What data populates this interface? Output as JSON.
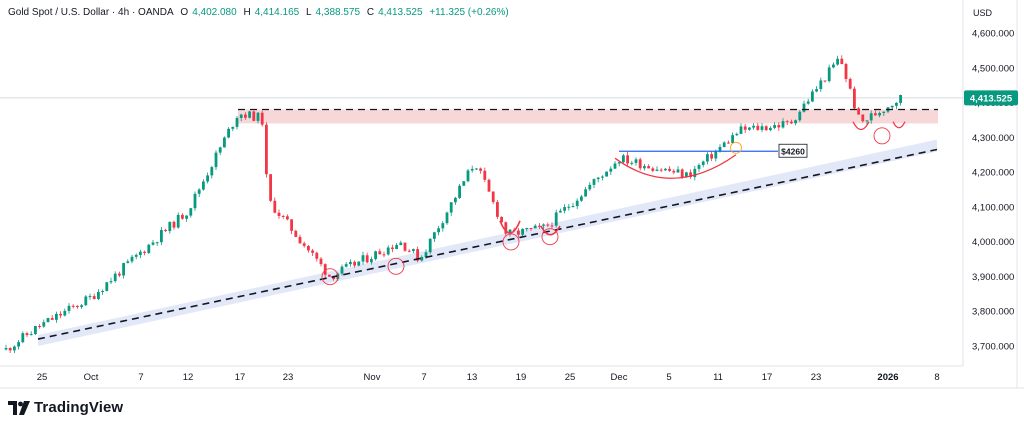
{
  "header": {
    "symbol": "Gold Spot / U.S. Dollar · 4h · OANDA",
    "open_label": "O",
    "open": "4,402.080",
    "high_label": "H",
    "high": "4,414.165",
    "low_label": "L",
    "low": "4,388.575",
    "close_label": "C",
    "close": "4,413.525",
    "change": "+11.325 (+0.26%)"
  },
  "price_axis": {
    "currency": "USD",
    "last_price": "4,413.525"
  },
  "annotation": {
    "level_label": "$4260"
  },
  "brand": {
    "name": "TradingView"
  },
  "colors": {
    "up": "#089981",
    "down": "#f23645",
    "zone": "#f8d7d9",
    "trend_band": "#e3e8f8",
    "level_line": "#2962ff",
    "last_price_tag": "#089981"
  },
  "chart_data": {
    "type": "candlestick",
    "ylim": [
      3660,
      4640
    ],
    "y_ticks": [
      "3,700.000",
      "3,800.000",
      "3,900.000",
      "4,000.000",
      "4,100.000",
      "4,200.000",
      "4,300.000",
      "4,400.000",
      "4,500.000",
      "4,600.000"
    ],
    "y_tick_values": [
      3700,
      3800,
      3900,
      4000,
      4100,
      4200,
      4300,
      4400,
      4500,
      4600
    ],
    "x_ticks": [
      "25",
      "Oct",
      "7",
      "12",
      "17",
      "23",
      "Nov",
      "7",
      "13",
      "19",
      "25",
      "Dec",
      "5",
      "11",
      "17",
      "23",
      "2026",
      "8"
    ],
    "approx_closes": [
      {
        "x": "Sep 22",
        "y": 3690
      },
      {
        "x": "Sep 25",
        "y": 3755
      },
      {
        "x": "Oct 1",
        "y": 3840
      },
      {
        "x": "Oct 7",
        "y": 3970
      },
      {
        "x": "Oct 12",
        "y": 4090
      },
      {
        "x": "Oct 17",
        "y": 4370
      },
      {
        "x": "Oct 20",
        "y": 4355
      },
      {
        "x": "Oct 21",
        "y": 4120
      },
      {
        "x": "Oct 28",
        "y": 3900
      },
      {
        "x": "Nov 3",
        "y": 4000
      },
      {
        "x": "Nov 5",
        "y": 3950
      },
      {
        "x": "Nov 13",
        "y": 4230
      },
      {
        "x": "Nov 17",
        "y": 4020
      },
      {
        "x": "Nov 21",
        "y": 4040
      },
      {
        "x": "Dec 1",
        "y": 4240
      },
      {
        "x": "Dec 8",
        "y": 4190
      },
      {
        "x": "Dec 12",
        "y": 4320
      },
      {
        "x": "Dec 19",
        "y": 4340
      },
      {
        "x": "Dec 26",
        "y": 4530
      },
      {
        "x": "Dec 29",
        "y": 4340
      },
      {
        "x": "Jan 2",
        "y": 4413.525
      }
    ],
    "resistance_level": 4380,
    "resistance_zone": [
      4340,
      4380
    ],
    "support_level": 4260,
    "trendline": [
      {
        "x": "Sep 25",
        "y": 3720
      },
      {
        "x": "Jan 6",
        "y": 4265
      }
    ]
  }
}
